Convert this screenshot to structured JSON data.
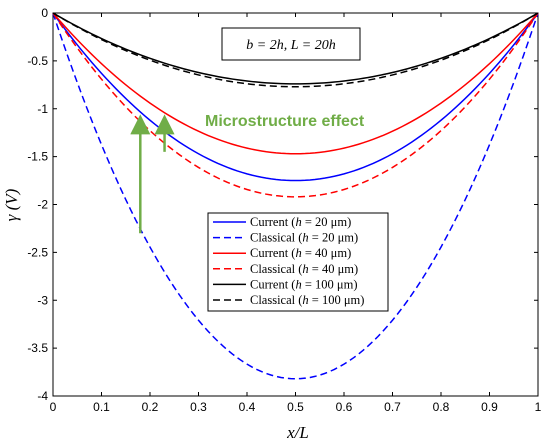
{
  "chart_data": {
    "type": "line",
    "xlabel": "x/L",
    "ylabel": "γ (V)",
    "xlim": [
      0,
      1
    ],
    "ylim": [
      -4,
      0
    ],
    "xticks": [
      "0",
      "0.1",
      "0.2",
      "0.3",
      "0.4",
      "0.5",
      "0.6",
      "0.7",
      "0.8",
      "0.9",
      "1"
    ],
    "yticks": [
      "0",
      "-0.5",
      "-1",
      "-1.5",
      "-2",
      "-2.5",
      "-3",
      "-3.5",
      "-4"
    ],
    "grid": false,
    "legend_position": "center-right",
    "parameter_box": "b = 2h, L = 20h",
    "annotation": "Microstructure effect",
    "series": [
      {
        "name": "Current (h = 20 μm)",
        "legend_prefix": "Current (",
        "legend_var": "h",
        "legend_suffix": " = 20 μm)",
        "color": "#0000ff",
        "dash": "solid",
        "min": -1.75
      },
      {
        "name": "Classical (h = 20 μm)",
        "legend_prefix": "Classical (",
        "legend_var": "h",
        "legend_suffix": " = 20 μm)",
        "color": "#0000ff",
        "dash": "dashed",
        "min": -3.82
      },
      {
        "name": "Current (h = 40 μm)",
        "legend_prefix": "Current (",
        "legend_var": "h",
        "legend_suffix": " = 40 μm)",
        "color": "#ff0000",
        "dash": "solid",
        "min": -1.47
      },
      {
        "name": "Classical (h = 40 μm)",
        "legend_prefix": "Classical (",
        "legend_var": "h",
        "legend_suffix": " = 40 μm)",
        "color": "#ff0000",
        "dash": "dashed",
        "min": -1.92
      },
      {
        "name": "Current (h = 100 μm)",
        "legend_prefix": "Current (",
        "legend_var": "h",
        "legend_suffix": " = 100 μm)",
        "color": "#000000",
        "dash": "solid",
        "min": -0.74
      },
      {
        "name": "Classical (h = 100 μm)",
        "legend_prefix": "Classical (",
        "legend_var": "h",
        "legend_suffix": " = 100 μm)",
        "color": "#000000",
        "dash": "dashed",
        "min": -0.77
      }
    ],
    "arrows": [
      {
        "x": 0.18,
        "y_from": -2.3,
        "y_to": -1.1,
        "color": "#70ad47"
      },
      {
        "x": 0.23,
        "y_from": -1.45,
        "y_to": -1.1,
        "color": "#70ad47"
      }
    ]
  }
}
